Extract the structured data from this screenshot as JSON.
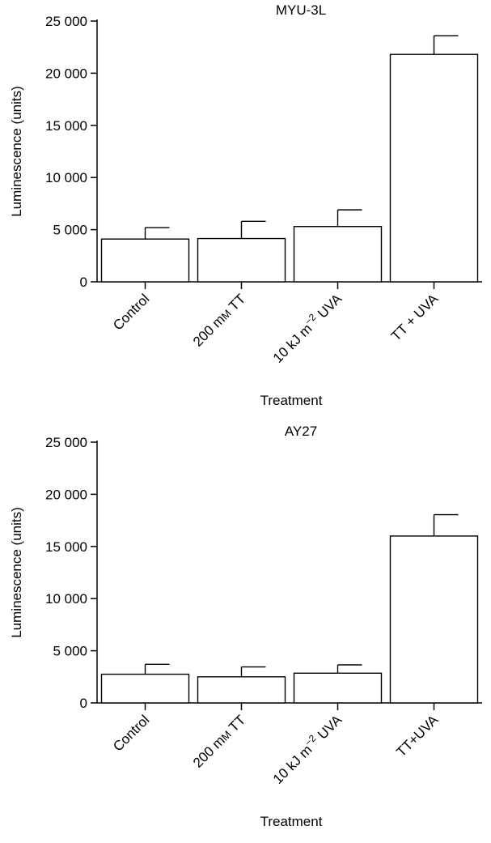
{
  "chart_data": [
    {
      "type": "bar",
      "title": "MYU-3L",
      "xlabel": "Treatment",
      "ylabel": "Luminescence (units)",
      "ylim": [
        0,
        25000
      ],
      "y_ticks": [
        0,
        5000,
        10000,
        15000,
        20000,
        25000
      ],
      "y_tick_labels": [
        "0",
        "5 000",
        "10 000",
        "15 000",
        "20 000",
        "25 000"
      ],
      "categories": [
        "Control",
        "200 mM TT",
        "10 kJ m−2 UVA",
        "TT + UVA"
      ],
      "category_labels": [
        {
          "text": "Control"
        },
        {
          "parts": [
            {
              "t": "200 m"
            },
            {
              "t": "M",
              "small": true
            },
            {
              "t": " TT"
            }
          ]
        },
        {
          "parts": [
            {
              "t": "10 kJ m"
            },
            {
              "t": "−2",
              "sup": true
            },
            {
              "t": " UVA"
            }
          ]
        },
        {
          "text": "TT + UVA"
        }
      ],
      "values": [
        4100,
        4150,
        5300,
        21800
      ],
      "errors": [
        1100,
        1650,
        1600,
        1800
      ]
    },
    {
      "type": "bar",
      "title": "AY27",
      "xlabel": "Treatment",
      "ylabel": "Luminescence (units)",
      "ylim": [
        0,
        25000
      ],
      "y_ticks": [
        0,
        5000,
        10000,
        15000,
        20000,
        25000
      ],
      "y_tick_labels": [
        "0",
        "5 000",
        "10 000",
        "15 000",
        "20 000",
        "25 000"
      ],
      "categories": [
        "Control",
        "200 mM TT",
        "10 kJ m−2 UVA",
        "TT+UVA"
      ],
      "category_labels": [
        {
          "text": "Control"
        },
        {
          "parts": [
            {
              "t": "200 m"
            },
            {
              "t": "M",
              "small": true
            },
            {
              "t": " TT"
            }
          ]
        },
        {
          "parts": [
            {
              "t": "10 kJ m"
            },
            {
              "t": "−2",
              "sup": true
            },
            {
              "t": " UVA"
            }
          ]
        },
        {
          "text": "TT+UVA"
        }
      ],
      "values": [
        2750,
        2500,
        2850,
        16000
      ],
      "errors": [
        950,
        950,
        800,
        2050
      ]
    }
  ]
}
